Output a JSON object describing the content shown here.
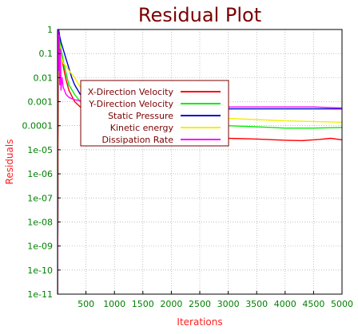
{
  "chart_data": {
    "type": "line",
    "title": "Residual Plot",
    "xlabel": "Iterations",
    "ylabel": "Residuals",
    "xlim": [
      0,
      5000
    ],
    "ylim": [
      1e-11,
      1
    ],
    "y_scale": "log",
    "grid": true,
    "legend_placement": "center-left",
    "x_ticks": [
      500,
      1000,
      1500,
      2000,
      2500,
      3000,
      3500,
      4000,
      4500,
      5000
    ],
    "x_tick_labels": [
      "500",
      "1000",
      "1500",
      "2000",
      "2500",
      "3000",
      "3500",
      "4000",
      "4500",
      "5000"
    ],
    "y_ticks": [
      1,
      0.1,
      0.01,
      0.001,
      0.0001,
      1e-05,
      1e-06,
      1e-07,
      1e-08,
      1e-09,
      1e-10,
      1e-11
    ],
    "y_tick_labels": [
      "1",
      "0.1",
      "0.01",
      "0.001",
      "0.0001",
      "1e-05",
      "1e-06",
      "1e-07",
      "1e-08",
      "1e-09",
      "1e-10",
      "1e-11"
    ],
    "series": [
      {
        "name": "X-Direction Velocity",
        "color": "#ff0000",
        "x": [
          0,
          20,
          40,
          60,
          100,
          150,
          200,
          300,
          400,
          500,
          700,
          1000,
          1500,
          2000,
          2500,
          3000,
          3500,
          4000,
          4300,
          4600,
          4800,
          5000
        ],
        "y": [
          1e-11,
          0.8,
          0.3,
          0.1,
          0.03,
          0.008,
          0.003,
          0.001,
          0.0006,
          0.0004,
          0.0002,
          0.00012,
          8e-05,
          6e-05,
          4e-05,
          3e-05,
          2.8e-05,
          2.5e-05,
          2.4e-05,
          2.7e-05,
          3e-05,
          2.6e-05
        ]
      },
      {
        "name": "Y-Direction Velocity",
        "color": "#00ee00",
        "x": [
          0,
          20,
          40,
          60,
          100,
          150,
          200,
          300,
          400,
          500,
          700,
          1000,
          1500,
          2000,
          2500,
          3000,
          3500,
          4000,
          4500,
          5000
        ],
        "y": [
          1e-11,
          1,
          0.4,
          0.15,
          0.05,
          0.015,
          0.005,
          0.002,
          0.001,
          0.0007,
          0.0004,
          0.00025,
          0.00018,
          0.00015,
          0.00011,
          0.0001,
          9e-05,
          8e-05,
          8e-05,
          8.5e-05
        ]
      },
      {
        "name": "Static Pressure",
        "color": "#0000cc",
        "x": [
          0,
          20,
          40,
          60,
          100,
          150,
          200,
          250,
          300,
          400,
          500,
          700,
          1000,
          1500,
          2000,
          2500,
          3000,
          3500,
          4000,
          4500,
          5000
        ],
        "y": [
          1e-11,
          1,
          0.5,
          0.3,
          0.15,
          0.06,
          0.025,
          0.01,
          0.005,
          0.002,
          0.0012,
          0.0009,
          0.0008,
          0.0007,
          0.0006,
          0.00055,
          0.0005,
          0.0005,
          0.0005,
          0.0005,
          0.0005
        ]
      },
      {
        "name": "Kinetic energy",
        "color": "#f0f000",
        "x": [
          0,
          20,
          40,
          60,
          100,
          150,
          200,
          300,
          400,
          500,
          700,
          1000,
          1500,
          2000,
          2500,
          3000,
          3500,
          4000,
          4500,
          5000
        ],
        "y": [
          1e-11,
          0.5,
          0.2,
          0.08,
          0.04,
          0.03,
          0.02,
          0.01,
          0.004,
          0.002,
          0.001,
          0.0006,
          0.0004,
          0.0003,
          0.00025,
          0.0002,
          0.00018,
          0.00016,
          0.00015,
          0.00014
        ]
      },
      {
        "name": "Dissipation Rate",
        "color": "#ff00ff",
        "x": [
          0,
          10,
          20,
          30,
          40,
          50,
          60,
          80,
          100,
          150,
          200,
          300,
          400,
          500,
          700,
          1000,
          1500,
          2000,
          2500,
          3000,
          3500,
          4000,
          4500,
          5000
        ],
        "y": [
          1e-11,
          1,
          0.02,
          0.6,
          0.005,
          0.15,
          0.003,
          0.01,
          0.004,
          0.002,
          0.0015,
          0.0012,
          0.0011,
          0.001,
          0.0009,
          0.0008,
          0.0007,
          0.0007,
          0.0007,
          0.0006,
          0.0006,
          0.0006,
          0.0006,
          0.00055
        ]
      }
    ]
  }
}
